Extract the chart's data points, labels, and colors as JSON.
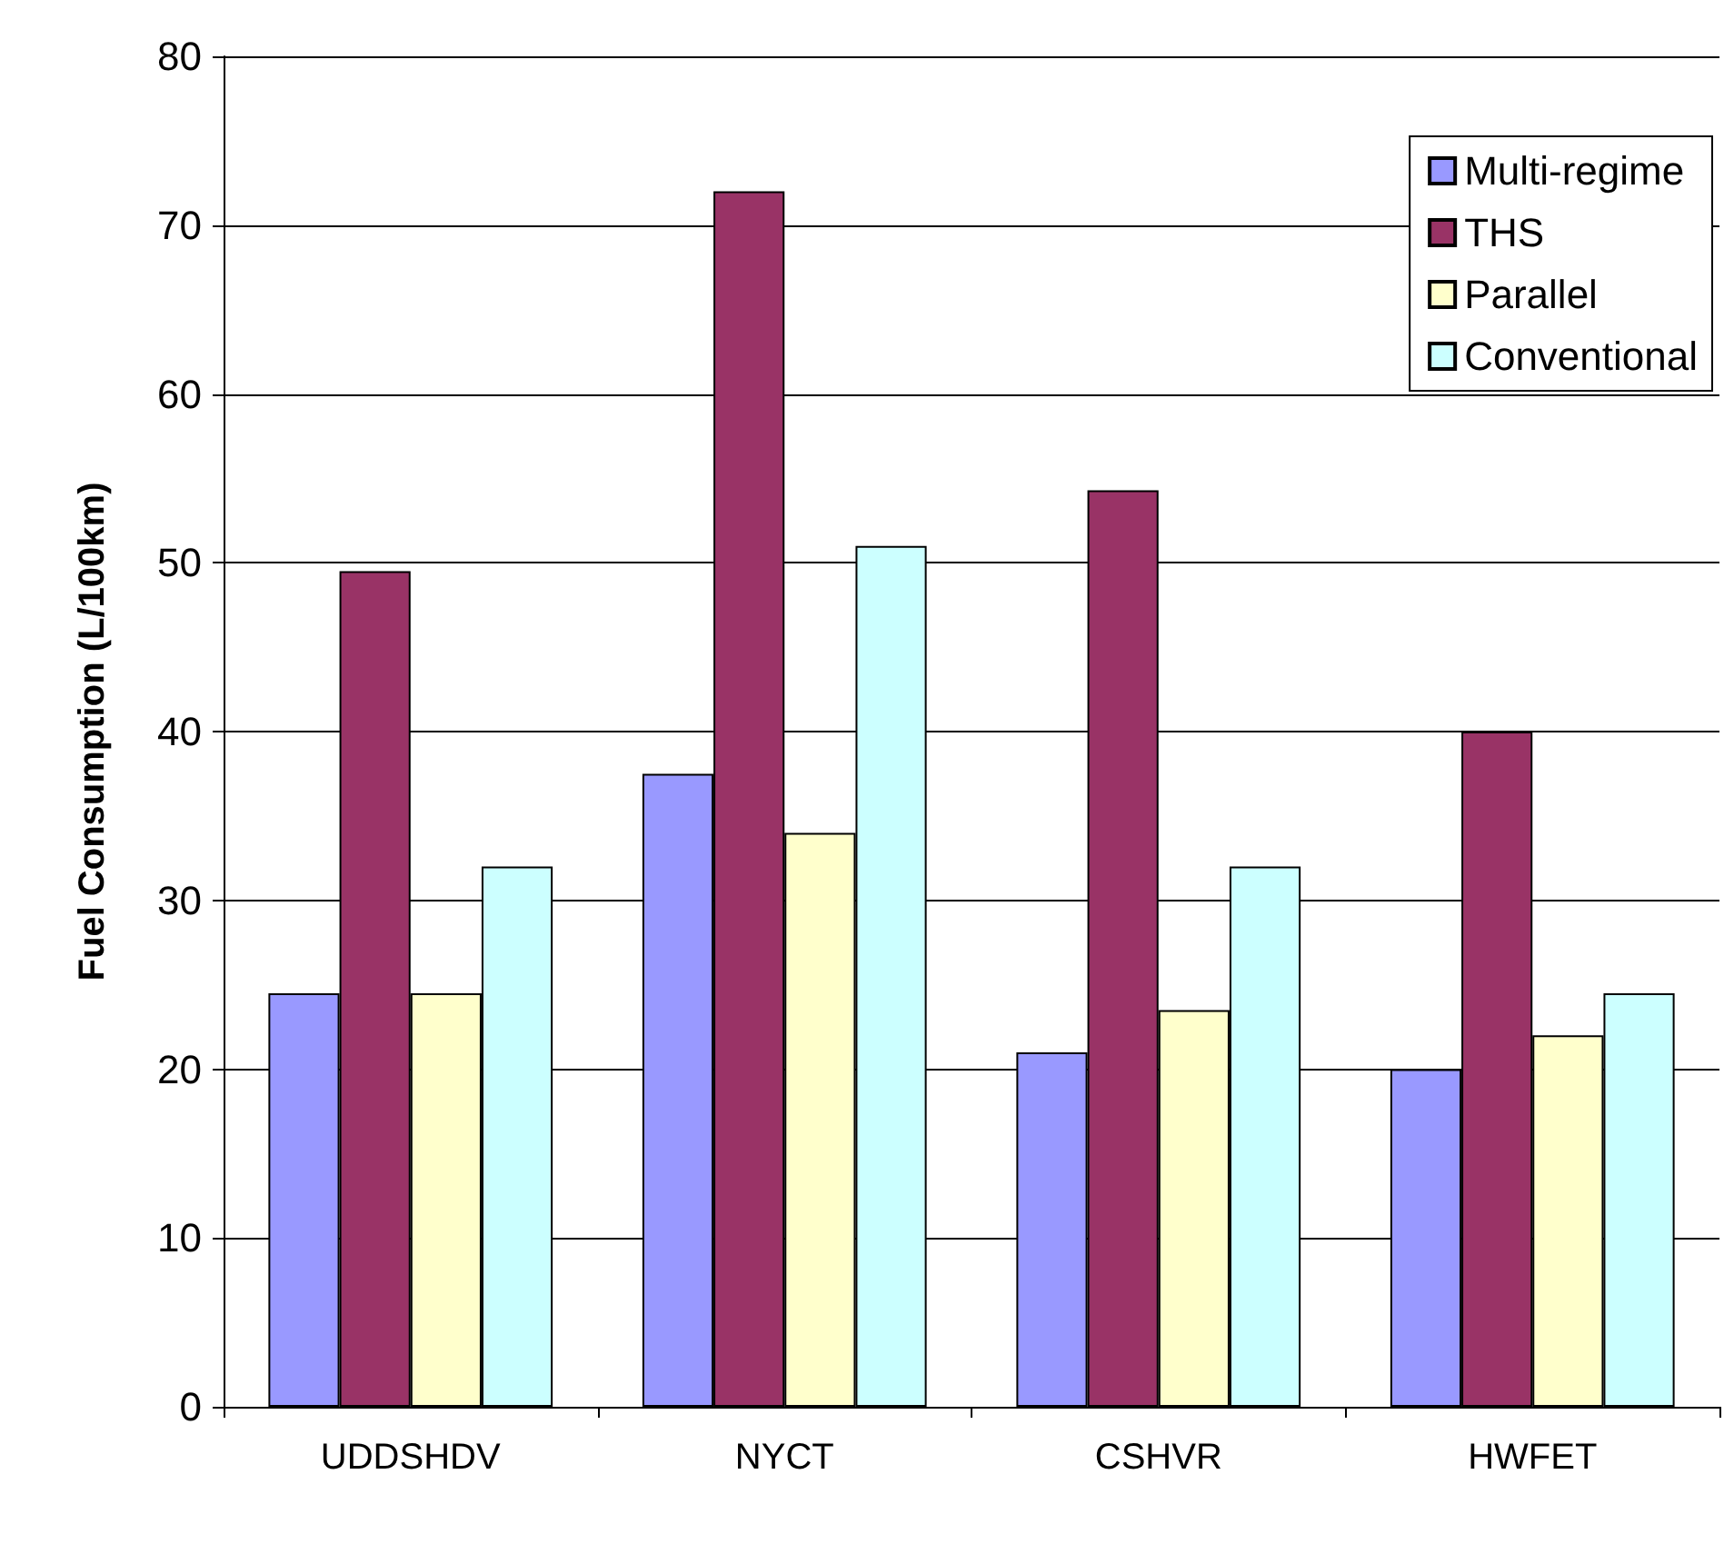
{
  "chart_data": {
    "type": "bar",
    "ylabel": "Fuel Consumption (L/100km)",
    "categories": [
      "UDDSHDV",
      "NYCT",
      "CSHVR",
      "HWFET"
    ],
    "series": [
      {
        "name": "Multi-regime",
        "color": "#9999ff",
        "values": [
          24.5,
          37.5,
          21,
          20
        ]
      },
      {
        "name": "THS",
        "color": "#993366",
        "values": [
          49.5,
          72,
          54.3,
          40
        ]
      },
      {
        "name": "Parallel",
        "color": "#ffffcc",
        "values": [
          24.5,
          34,
          23.5,
          22
        ]
      },
      {
        "name": "Conventional",
        "color": "#ccffff",
        "values": [
          32,
          51,
          32,
          24.5
        ]
      }
    ],
    "ylim": [
      0,
      80
    ],
    "yticks": [
      0,
      10,
      20,
      30,
      40,
      50,
      60,
      70,
      80
    ],
    "grid": "y",
    "legend": "top right"
  }
}
